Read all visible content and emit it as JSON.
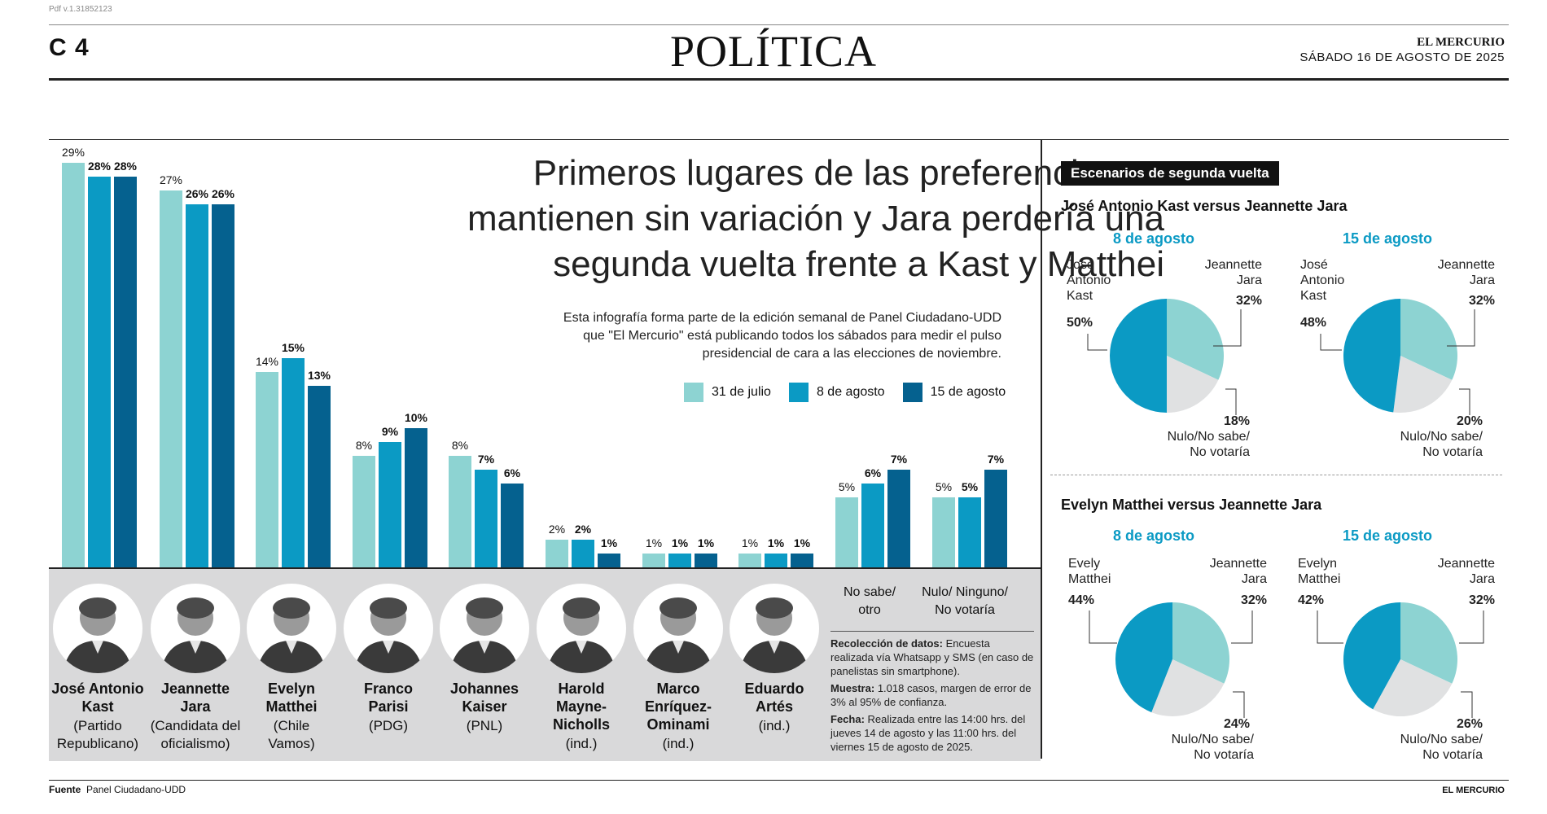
{
  "page": {
    "pdf_version": "Pdf v.1.31852123",
    "page_number": "C 4",
    "section": "POLÍTICA",
    "brand": "EL MERCURIO",
    "date": "SÁBADO 16 DE AGOSTO DE 2025"
  },
  "headline": {
    "line1": "Primeros lugares de las preferencias se",
    "line2": "mantienen sin variación y Jara perdería una",
    "line3": "segunda vuelta frente a Kast y Matthei"
  },
  "intro": {
    "line1": "Esta infografía forma parte de la edición semanal de Panel Ciudadano-UDD",
    "line2": "que \"El Mercurio\" está publicando todos los sábados para medir el pulso",
    "line3": "presidencial de cara a las elecciones de noviembre."
  },
  "colors": {
    "s1": "#8dd3d2",
    "s2": "#0b9ac4",
    "s3": "#05618f",
    "nulo": "#e0e1e2"
  },
  "candidates": [
    {
      "name1": "José Antonio",
      "name2": "Kast",
      "party1": "(Partido",
      "party2": "Republicano)"
    },
    {
      "name1": "Jeannette",
      "name2": "Jara",
      "party1": "(Candidata del",
      "party2": "oficialismo)"
    },
    {
      "name1": "Evelyn",
      "name2": "Matthei",
      "party1": "(Chile",
      "party2": "Vamos)"
    },
    {
      "name1": "Franco",
      "name2": "Parisi",
      "party1": "(PDG)",
      "party2": ""
    },
    {
      "name1": "Johannes",
      "name2": "Kaiser",
      "party1": "(PNL)",
      "party2": ""
    },
    {
      "name1": "Harold",
      "name2": "Mayne-",
      "name3": "Nicholls",
      "party1": "(ind.)",
      "party2": ""
    },
    {
      "name1": "Marco",
      "name2": "Enríquez-",
      "name3": "Ominami",
      "party1": "(ind.)",
      "party2": ""
    },
    {
      "name1": "Eduardo",
      "name2": "Artés",
      "party1": "(ind.)",
      "party2": ""
    }
  ],
  "other_labels": {
    "nosabe1": "No sabe/",
    "nosabe2": "otro",
    "nulo1": "Nulo/ Ninguno/",
    "nulo2": "No votaría"
  },
  "methods": {
    "recoleccion_label": "Recolección de datos:",
    "recoleccion_text": "Encuesta realizada vía Whatsapp y SMS (en caso de panelistas sin smartphone).",
    "muestra_label": "Muestra:",
    "muestra_text": "1.018  casos, margen de error de 3% al 95% de confianza.",
    "fecha_label": "Fecha:",
    "fecha_text": "Realizada entre las 14:00 hrs. del jueves 14 de agosto y las 11:00 hrs. del viernes 15 de agosto de 2025."
  },
  "right": {
    "box_title": "Escenarios de segunda vuelta",
    "s1_title": "José Antonio Kast versus Jeannette Jara",
    "s2_title": "Evelyn Matthei versus Jeannette Jara",
    "date_a": "8 de agosto",
    "date_b": "15 de agosto",
    "kast_l1": "José",
    "kast_l2": "Antonio",
    "kast_l3": "Kast",
    "matthei_l1_a": "Evely",
    "matthei_l1_b": "Evelyn",
    "matthei_l2": "Matthei",
    "jara_l1": "Jeannette",
    "jara_l2": "Jara",
    "nulo_l1": "Nulo/No sabe/",
    "nulo_l2": "No votaría"
  },
  "footer": {
    "fuente_label": "Fuente",
    "fuente_text": "Panel Ciudadano-UDD",
    "brand": "EL MERCURIO"
  },
  "chart_data": [
    {
      "type": "bar",
      "categories": [
        "José Antonio Kast",
        "Jeannette Jara",
        "Evelyn Matthei",
        "Franco Parisi",
        "Johannes Kaiser",
        "Harold Mayne-Nicholls",
        "Marco Enríquez-Ominami",
        "Eduardo Artés",
        "No sabe/ otro",
        "Nulo/ Ninguno/ No votaría"
      ],
      "series": [
        {
          "name": "31 de julio",
          "values": [
            29,
            27,
            14,
            8,
            8,
            2,
            1,
            1,
            5,
            5
          ]
        },
        {
          "name": "8 de agosto",
          "values": [
            28,
            26,
            15,
            9,
            7,
            2,
            1,
            1,
            6,
            5
          ]
        },
        {
          "name": "15 de agosto",
          "values": [
            28,
            26,
            13,
            10,
            6,
            1,
            1,
            1,
            7,
            7
          ]
        }
      ],
      "value_labels": [
        [
          "29%",
          "27%",
          "14%",
          "8%",
          "8%",
          "2%",
          "1%",
          "1%",
          "5%",
          "5%"
        ],
        [
          "28%",
          "26%",
          "15%",
          "9%",
          "7%",
          "2%",
          "1%",
          "1%",
          "6%",
          "5%"
        ],
        [
          "28%",
          "26%",
          "13%",
          "10%",
          "6%",
          "1%",
          "1%",
          "1%",
          "7%",
          "7%"
        ]
      ],
      "ylim": [
        0,
        29
      ],
      "legend": "top-right"
    },
    {
      "type": "pie",
      "title": "José Antonio Kast versus Jeannette Jara",
      "subtitle": "8 de agosto",
      "slices": [
        {
          "label": "Jeannette Jara",
          "value": 32,
          "text": "32%"
        },
        {
          "label": "Nulo/No sabe/ No votaría",
          "value": 18,
          "text": "18%"
        },
        {
          "label": "José Antonio Kast",
          "value": 50,
          "text": "50%"
        }
      ]
    },
    {
      "type": "pie",
      "title": "José Antonio Kast versus Jeannette Jara",
      "subtitle": "15 de agosto",
      "slices": [
        {
          "label": "Jeannette Jara",
          "value": 32,
          "text": "32%"
        },
        {
          "label": "Nulo/No sabe/ No votaría",
          "value": 20,
          "text": "20%"
        },
        {
          "label": "José Antonio Kast",
          "value": 48,
          "text": "48%"
        }
      ]
    },
    {
      "type": "pie",
      "title": "Evelyn Matthei versus Jeannette Jara",
      "subtitle": "8 de agosto",
      "slices": [
        {
          "label": "Jeannette Jara",
          "value": 32,
          "text": "32%"
        },
        {
          "label": "Nulo/No sabe/ No votaría",
          "value": 24,
          "text": "24%"
        },
        {
          "label": "Evely Matthei",
          "value": 44,
          "text": "44%"
        }
      ]
    },
    {
      "type": "pie",
      "title": "Evelyn Matthei versus Jeannette Jara",
      "subtitle": "15 de agosto",
      "slices": [
        {
          "label": "Jeannette Jara",
          "value": 32,
          "text": "32%"
        },
        {
          "label": "Nulo/No sabe/ No votaría",
          "value": 26,
          "text": "26%"
        },
        {
          "label": "Evelyn Matthei",
          "value": 42,
          "text": "42%"
        }
      ]
    }
  ]
}
